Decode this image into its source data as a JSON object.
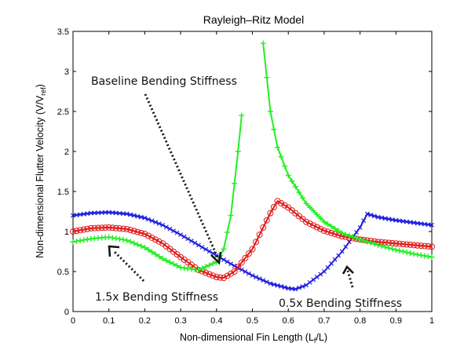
{
  "chart_data": {
    "type": "line",
    "title": "Rayleigh–Ritz Model",
    "xlabel": "Non-dimensional Fin Length (L",
    "xlabel_sub": "f",
    "xlabel_tail": "/L)",
    "ylabel": "Non-dimensional Flutter Velocity (V/V",
    "ylabel_sub": "ref",
    "ylabel_tail": ")",
    "xlim": [
      0,
      1
    ],
    "ylim": [
      0,
      3.5
    ],
    "xticks": [
      "0",
      "0.1",
      "0.2",
      "0.3",
      "0.4",
      "0.5",
      "0.6",
      "0.7",
      "0.8",
      "0.9",
      "1"
    ],
    "yticks": [
      "0",
      "0.5",
      "1",
      "1.5",
      "2",
      "2.5",
      "3",
      "3.5"
    ],
    "grid": false,
    "series": [
      {
        "color": "#1f1fdd",
        "marker": "x",
        "x": [
          0,
          0.05,
          0.1,
          0.15,
          0.2,
          0.25,
          0.3,
          0.35,
          0.4,
          0.45,
          0.5,
          0.55,
          0.6,
          0.62,
          0.65,
          0.7,
          0.75,
          0.8,
          0.82,
          0.85,
          0.9,
          0.95,
          1.0
        ],
        "y": [
          1.2,
          1.23,
          1.24,
          1.22,
          1.17,
          1.08,
          0.96,
          0.83,
          0.7,
          0.57,
          0.45,
          0.35,
          0.29,
          0.28,
          0.33,
          0.5,
          0.75,
          1.05,
          1.22,
          1.18,
          1.14,
          1.11,
          1.08
        ]
      },
      {
        "color": "#e01818",
        "marker": "o",
        "x": [
          0,
          0.05,
          0.1,
          0.15,
          0.2,
          0.25,
          0.3,
          0.35,
          0.4,
          0.42,
          0.45,
          0.5,
          0.55,
          0.57,
          0.6,
          0.65,
          0.7,
          0.75,
          0.8,
          0.85,
          0.9,
          0.95,
          1.0
        ],
        "y": [
          1.0,
          1.04,
          1.05,
          1.03,
          0.97,
          0.85,
          0.68,
          0.52,
          0.43,
          0.42,
          0.5,
          0.78,
          1.23,
          1.38,
          1.3,
          1.12,
          1.01,
          0.94,
          0.9,
          0.87,
          0.85,
          0.83,
          0.81
        ]
      },
      {
        "color": "#22ee22",
        "marker": "+",
        "x": [
          0,
          0.05,
          0.1,
          0.15,
          0.2,
          0.25,
          0.3,
          0.35,
          0.4,
          0.42,
          0.44,
          0.46,
          0.47,
          null,
          0.53,
          0.55,
          0.57,
          0.6,
          0.65,
          0.7,
          0.75,
          0.8,
          0.85,
          0.9,
          0.95,
          1.0
        ],
        "y": [
          0.87,
          0.91,
          0.93,
          0.89,
          0.8,
          0.66,
          0.55,
          0.52,
          0.62,
          0.78,
          1.2,
          2.0,
          2.45,
          null,
          3.35,
          2.5,
          2.05,
          1.7,
          1.35,
          1.12,
          0.98,
          0.9,
          0.83,
          0.77,
          0.72,
          0.68
        ]
      }
    ],
    "annotations": [
      {
        "text": "Baseline Bending Stiffness"
      },
      {
        "text": "1.5x Bending Stiffness"
      },
      {
        "text": "0.5x Bending Stiffness"
      }
    ]
  }
}
